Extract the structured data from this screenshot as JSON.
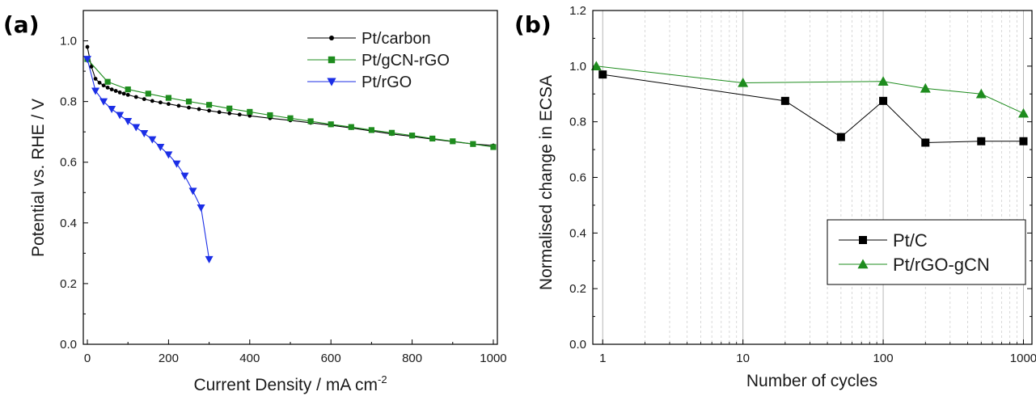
{
  "chart_data": [
    {
      "type": "line",
      "panel_label": "(a)",
      "xlabel": "Current Density / mA cm",
      "xlabel_sup": "-2",
      "ylabel": "Potential vs. RHE / V",
      "xlim": [
        -10,
        1010
      ],
      "ylim": [
        0.0,
        1.1
      ],
      "x_ticks": [
        0,
        200,
        400,
        600,
        800,
        1000
      ],
      "x_tick_labels": [
        "0",
        "200",
        "400",
        "600",
        "800",
        "1000"
      ],
      "y_ticks": [
        0.0,
        0.2,
        0.4,
        0.6,
        0.8,
        1.0
      ],
      "y_tick_labels": [
        "0.0",
        "0.2",
        "0.4",
        "0.6",
        "0.8",
        "1.0"
      ],
      "grid": false,
      "legend_position": "top-right",
      "series": [
        {
          "name": "Pt/carbon",
          "color": "#000000",
          "marker": "circle",
          "x": [
            0,
            10,
            20,
            30,
            40,
            50,
            60,
            70,
            80,
            90,
            100,
            120,
            140,
            160,
            180,
            200,
            225,
            250,
            275,
            300,
            325,
            350,
            375,
            400,
            450,
            500,
            550,
            600,
            650,
            700,
            750,
            800,
            850,
            900,
            950,
            1000
          ],
          "y": [
            0.98,
            0.915,
            0.875,
            0.862,
            0.853,
            0.846,
            0.84,
            0.835,
            0.83,
            0.826,
            0.822,
            0.815,
            0.808,
            0.802,
            0.797,
            0.792,
            0.786,
            0.78,
            0.775,
            0.77,
            0.765,
            0.761,
            0.757,
            0.753,
            0.745,
            0.738,
            0.73,
            0.722,
            0.713,
            0.703,
            0.693,
            0.685,
            0.676,
            0.668,
            0.66,
            0.655
          ]
        },
        {
          "name": "Pt/gCN-rGO",
          "color": "#1e8c1e",
          "marker": "square",
          "x": [
            0,
            50,
            100,
            150,
            200,
            250,
            300,
            350,
            400,
            450,
            500,
            550,
            600,
            650,
            700,
            750,
            800,
            850,
            900,
            950,
            1000
          ],
          "y": [
            0.94,
            0.865,
            0.84,
            0.826,
            0.812,
            0.8,
            0.789,
            0.777,
            0.766,
            0.755,
            0.745,
            0.735,
            0.725,
            0.716,
            0.706,
            0.697,
            0.688,
            0.678,
            0.669,
            0.66,
            0.65
          ]
        },
        {
          "name": "Pt/rGO",
          "color": "#1b2ee6",
          "marker": "triangle-down",
          "x": [
            0,
            20,
            40,
            60,
            80,
            100,
            120,
            140,
            160,
            180,
            200,
            220,
            240,
            260,
            280,
            300
          ],
          "y": [
            0.94,
            0.835,
            0.8,
            0.775,
            0.755,
            0.735,
            0.715,
            0.695,
            0.675,
            0.65,
            0.625,
            0.595,
            0.555,
            0.505,
            0.45,
            0.28
          ]
        }
      ]
    },
    {
      "type": "line",
      "panel_label": "(b)",
      "xlabel": "Number of cycles",
      "ylabel": "Normalised change in ECSA",
      "x_scale": "log",
      "xlim": [
        0.85,
        1150
      ],
      "ylim": [
        0.0,
        1.2
      ],
      "x_ticks": [
        1,
        10,
        100,
        1000
      ],
      "x_tick_labels": [
        "1",
        "10",
        "100",
        "1000"
      ],
      "y_ticks": [
        0.0,
        0.2,
        0.4,
        0.6,
        0.8,
        1.0,
        1.2
      ],
      "y_tick_labels": [
        "0.0",
        "0.2",
        "0.4",
        "0.6",
        "0.8",
        "1.0",
        "1.2"
      ],
      "grid": true,
      "legend_position": "bottom-right",
      "series": [
        {
          "name": "Pt/C",
          "color": "#000000",
          "marker": "square",
          "x": [
            1,
            20,
            50,
            100,
            200,
            500,
            1000
          ],
          "y": [
            0.97,
            0.875,
            0.745,
            0.875,
            0.725,
            0.73,
            0.73
          ]
        },
        {
          "name": "Pt/rGO-gCN",
          "color": "#1e8c1e",
          "marker": "triangle-up",
          "x": [
            0.9,
            10,
            100,
            200,
            500,
            1000
          ],
          "y": [
            1.0,
            0.94,
            0.945,
            0.92,
            0.9,
            0.83
          ]
        }
      ]
    }
  ]
}
